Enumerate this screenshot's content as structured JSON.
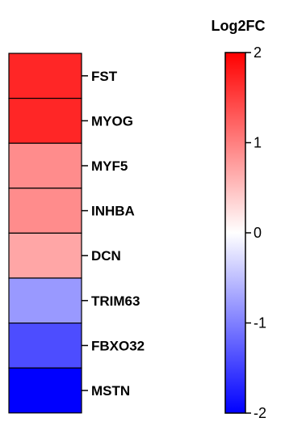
{
  "chart_data": {
    "type": "heatmap",
    "rows": [
      "FST",
      "MYOG",
      "MYF5",
      "INHBA",
      "DCN",
      "TRIM63",
      "FBXO32",
      "MSTN"
    ],
    "values": [
      1.7,
      1.7,
      0.9,
      0.9,
      0.7,
      -0.8,
      -1.4,
      -2.0
    ],
    "colorbar": {
      "title": "Log2FC",
      "min": -2,
      "max": 2,
      "ticks": [
        2,
        1,
        0,
        -1,
        -2
      ],
      "tick_labels": [
        "2",
        "1",
        "0",
        "-1",
        "-2"
      ],
      "colors": {
        "low": "#0000ff",
        "mid": "#ffffff",
        "high": "#ff0000"
      }
    }
  }
}
